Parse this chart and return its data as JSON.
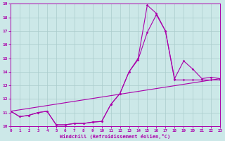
{
  "xlabel": "Windchill (Refroidissement éolien,°C)",
  "xlim": [
    0,
    23
  ],
  "ylim": [
    10,
    19
  ],
  "xticks": [
    0,
    1,
    2,
    3,
    4,
    5,
    6,
    7,
    8,
    9,
    10,
    11,
    12,
    13,
    14,
    15,
    16,
    17,
    18,
    19,
    20,
    21,
    22,
    23
  ],
  "yticks": [
    10,
    11,
    12,
    13,
    14,
    15,
    16,
    17,
    18,
    19
  ],
  "background_color": "#cce8e8",
  "grid_color": "#aacccc",
  "line_color": "#aa00aa",
  "series": [
    {
      "x": [
        0,
        1,
        2,
        3,
        4,
        5,
        6,
        7,
        8,
        9,
        10,
        11,
        12,
        13,
        14,
        15,
        16,
        17,
        18,
        19,
        20,
        21,
        22,
        23
      ],
      "y": [
        11.1,
        10.7,
        10.8,
        11.0,
        11.1,
        10.1,
        10.1,
        10.2,
        10.2,
        10.3,
        10.35,
        11.6,
        12.4,
        14.0,
        15.0,
        18.9,
        18.3,
        17.0,
        13.5,
        14.8,
        14.2,
        13.5,
        13.6,
        13.5
      ]
    },
    {
      "x": [
        0,
        1,
        2,
        3,
        4,
        5,
        6,
        7,
        8,
        9,
        10,
        11,
        12,
        13,
        14,
        15,
        16,
        17,
        18,
        19,
        20,
        21,
        22,
        23
      ],
      "y": [
        11.1,
        10.7,
        10.8,
        11.0,
        11.1,
        10.1,
        10.1,
        10.2,
        10.2,
        10.3,
        10.35,
        11.6,
        12.4,
        14.0,
        14.9,
        16.9,
        18.2,
        17.0,
        13.4,
        13.4,
        13.4,
        13.4,
        13.4,
        13.4
      ]
    },
    {
      "x": [
        0,
        23
      ],
      "y": [
        11.1,
        13.5
      ]
    }
  ]
}
